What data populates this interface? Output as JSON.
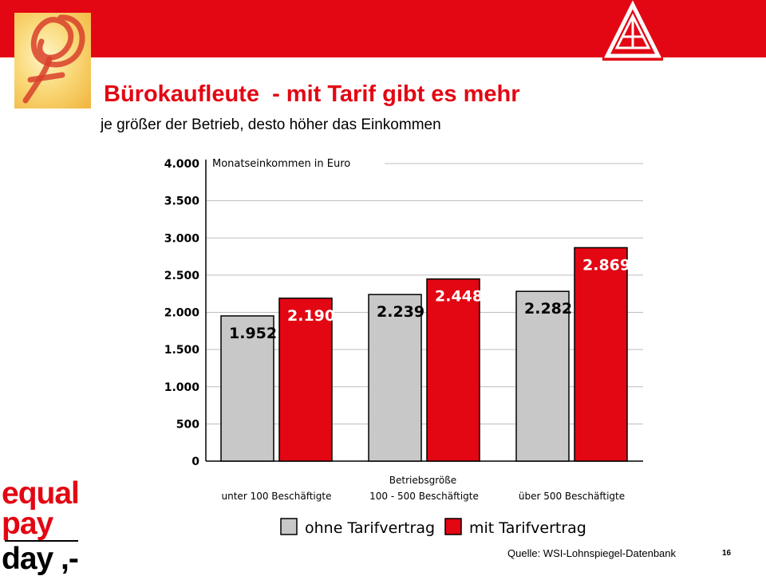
{
  "slide": {
    "title": "Bürokaufleute  - mit Tarif gibt es mehr",
    "subtitle": "je größer der Betrieb, desto höher das Einkommen",
    "source": "Quelle: WSI-Lohnspiegel-Datenbank",
    "page_number": "16"
  },
  "logo_equal_pay": {
    "line1": "equal",
    "line2": "pay",
    "line3": "day ,-"
  },
  "colors": {
    "brand_red": "#e30613",
    "series_grey": "#c8c8c8",
    "series_red": "#e30613"
  },
  "chart_data": {
    "type": "bar",
    "ylabel": "Monatseinkommen in Euro",
    "xlabel": "Betriebsgröße",
    "categories": [
      "unter 100 Beschäftigte",
      "100 - 500 Beschäftigte",
      "über 500 Beschäftigte"
    ],
    "series": [
      {
        "name": "ohne Tarifvertrag",
        "values": [
          1952,
          2239,
          2282
        ],
        "labels": [
          "1.952",
          "2.239",
          "2.282"
        ],
        "color": "#c8c8c8"
      },
      {
        "name": "mit Tarifvertrag",
        "values": [
          2190,
          2448,
          2869
        ],
        "labels": [
          "2.190",
          "2.448",
          "2.869"
        ],
        "color": "#e30613"
      }
    ],
    "ylim": [
      0,
      4000
    ],
    "yticks": [
      {
        "value": 0,
        "label": "0"
      },
      {
        "value": 500,
        "label": "500"
      },
      {
        "value": 1000,
        "label": "1.000"
      },
      {
        "value": 1500,
        "label": "1.500"
      },
      {
        "value": 2000,
        "label": "2.000"
      },
      {
        "value": 2500,
        "label": "2.500"
      },
      {
        "value": 3000,
        "label": "3.000"
      },
      {
        "value": 3500,
        "label": "3.500"
      },
      {
        "value": 4000,
        "label": "4.000"
      }
    ],
    "grid": true,
    "legend_position": "bottom"
  }
}
